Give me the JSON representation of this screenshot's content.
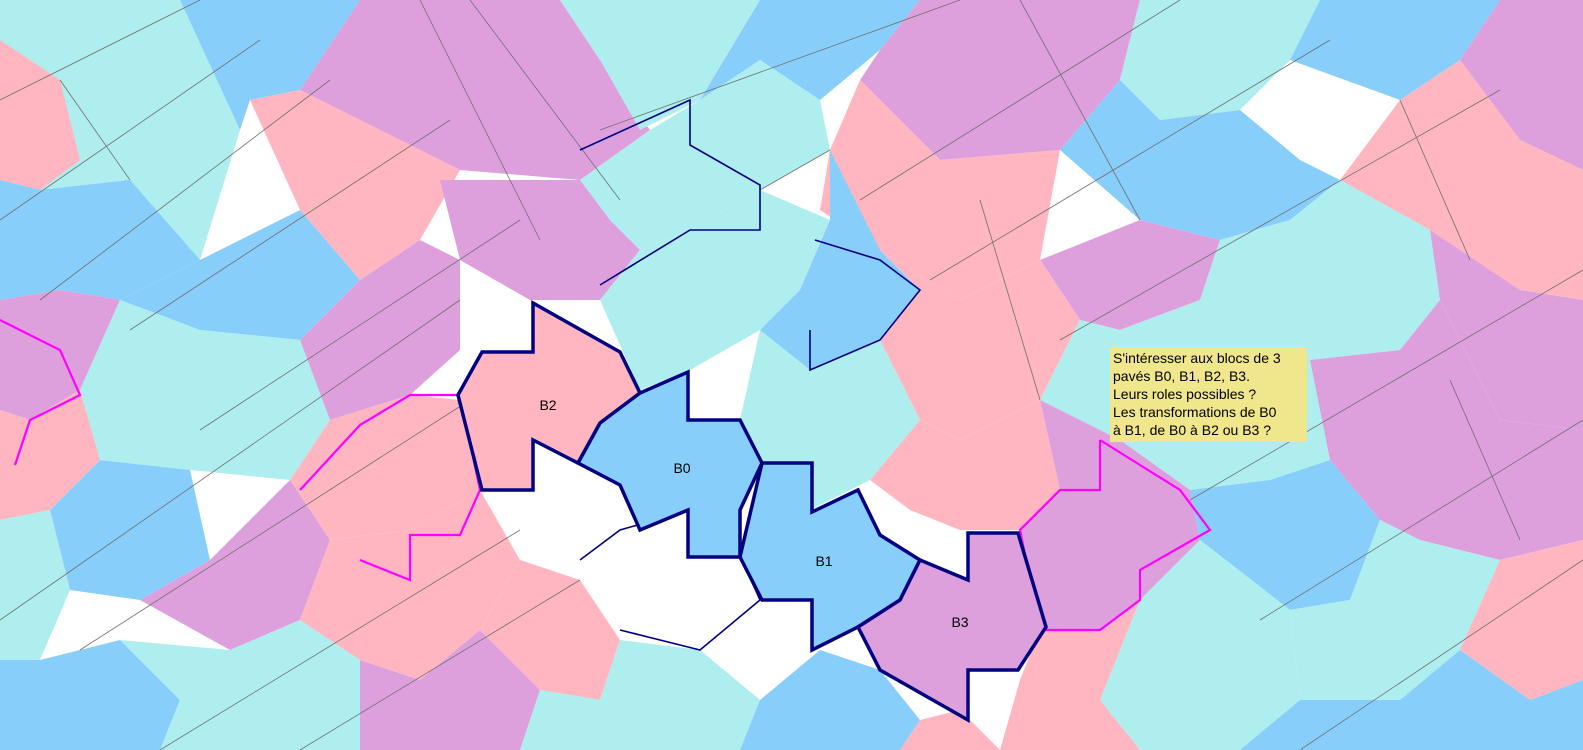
{
  "colors": {
    "cyan": "#afeeee",
    "blue": "#87cefa",
    "pink": "#ffb6c1",
    "violet": "#dda0dd",
    "edge": "#707070",
    "navy": "#000080",
    "magenta": "#ff00ff",
    "note_bg": "#f0e68c"
  },
  "blocks": [
    {
      "id": "B0",
      "label": "B0",
      "color": "blue"
    },
    {
      "id": "B1",
      "label": "B1",
      "color": "blue"
    },
    {
      "id": "B2",
      "label": "B2",
      "color": "pink"
    },
    {
      "id": "B3",
      "label": "B3",
      "color": "violet"
    }
  ],
  "note": {
    "lines": [
      "S'intéresser aux blocs de 3",
      "pavés B0, B1, B2, B3.",
      "Leurs roles possibles ?",
      "Les transformations de B0",
      "à B1, de B0 à B2 ou B3 ?"
    ]
  }
}
